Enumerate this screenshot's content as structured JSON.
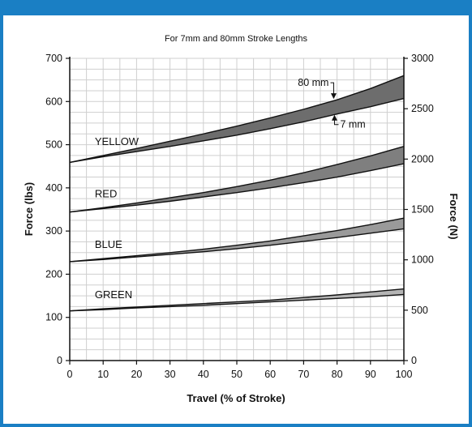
{
  "chart_data": {
    "type": "area",
    "title": "For 7mm and 80mm Stroke Lengths",
    "xlabel": "Travel (% of Stroke)",
    "ylabel": "Force (lbs)",
    "y2label": "Force (N)",
    "xlim": [
      0,
      100
    ],
    "ylim": [
      0,
      700
    ],
    "y2lim": [
      0,
      3000
    ],
    "xticks": [
      0,
      10,
      20,
      30,
      40,
      50,
      60,
      70,
      80,
      90,
      100
    ],
    "yticks": [
      0,
      100,
      200,
      300,
      400,
      500,
      600,
      700
    ],
    "y2ticks": [
      0,
      500,
      1000,
      1500,
      2000,
      2500,
      3000
    ],
    "grid": true,
    "x": [
      0,
      10,
      20,
      30,
      40,
      50,
      60,
      70,
      80,
      90,
      100
    ],
    "stroke_labels": {
      "long": "80 mm",
      "short": "7 mm"
    },
    "bands": [
      {
        "name": "YELLOW",
        "color": "#6d6d6d",
        "stroke_80mm": [
          459,
          475,
          491,
          508,
          525,
          543,
          562,
          582,
          604,
          630,
          660
        ],
        "stroke_7mm": [
          459,
          472,
          484,
          496,
          509,
          522,
          537,
          553,
          571,
          588,
          607
        ]
      },
      {
        "name": "RED",
        "color": "#7f7f7f",
        "stroke_80mm": [
          344,
          354,
          365,
          377,
          389,
          403,
          418,
          435,
          454,
          474,
          496
        ],
        "stroke_7mm": [
          344,
          352,
          360,
          369,
          379,
          389,
          400,
          412,
          425,
          440,
          456
        ]
      },
      {
        "name": "BLUE",
        "color": "#9a9a9a",
        "stroke_80mm": [
          229,
          236,
          243,
          250,
          258,
          267,
          277,
          289,
          301,
          315,
          330
        ],
        "stroke_7mm": [
          229,
          234,
          240,
          246,
          252,
          259,
          267,
          276,
          285,
          295,
          305
        ]
      },
      {
        "name": "GREEN",
        "color": "#b4b4b4",
        "stroke_80mm": [
          115,
          120,
          124,
          128,
          132,
          136,
          140,
          146,
          152,
          159,
          166
        ],
        "stroke_7mm": [
          115,
          118,
          122,
          125,
          128,
          132,
          136,
          140,
          144,
          148,
          153
        ]
      }
    ]
  }
}
